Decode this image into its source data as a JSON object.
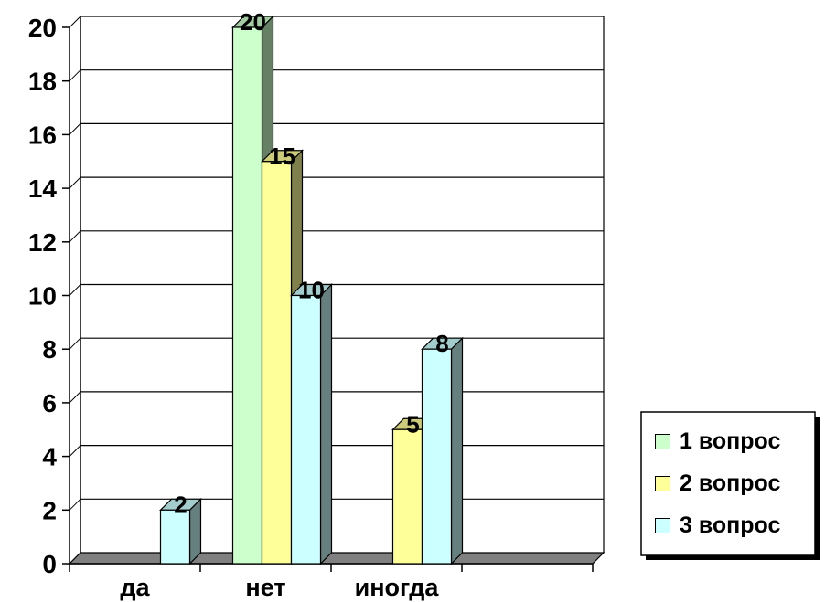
{
  "chart_data": {
    "type": "bar",
    "categories": [
      "да",
      "нет",
      "иногда",
      ""
    ],
    "series": [
      {
        "name": "1 вопрос",
        "color": "#CCFFCC",
        "values": [
          0,
          20,
          0,
          0
        ]
      },
      {
        "name": "2 вопрос",
        "color": "#FFFF99",
        "values": [
          0,
          15,
          5,
          0
        ]
      },
      {
        "name": "3 вопрос",
        "color": "#CCFFFF",
        "values": [
          2,
          10,
          8,
          0
        ]
      }
    ],
    "ylim": [
      0,
      20
    ],
    "yticks": [
      0,
      2,
      4,
      6,
      8,
      10,
      12,
      14,
      16,
      18,
      20
    ],
    "grid": true,
    "legend_position": "right",
    "data_labels": true
  }
}
